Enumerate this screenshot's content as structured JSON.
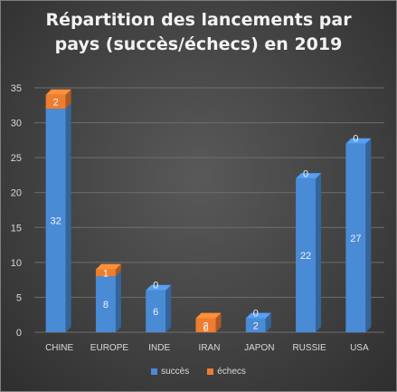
{
  "chart_data": {
    "type": "bar",
    "stacked": true,
    "style": "3d-columns",
    "title_lines": [
      "Répartition des lancements par",
      "pays (succès/échecs) en 2019"
    ],
    "categories": [
      "CHINE",
      "EUROPE",
      "INDE",
      "IRAN",
      "JAPON",
      "RUSSIE",
      "USA"
    ],
    "series": [
      {
        "name": "succès",
        "values": [
          32,
          8,
          6,
          0,
          2,
          22,
          27
        ],
        "color": "#4a8bd6"
      },
      {
        "name": "échecs",
        "values": [
          2,
          1,
          0,
          2,
          0,
          0,
          0
        ],
        "color": "#ed7d31"
      }
    ],
    "ylim": [
      0,
      35
    ],
    "yticks": [
      0,
      5,
      10,
      15,
      20,
      25,
      30,
      35
    ],
    "grid": true,
    "legend_position": "bottom",
    "data_labels": true
  }
}
